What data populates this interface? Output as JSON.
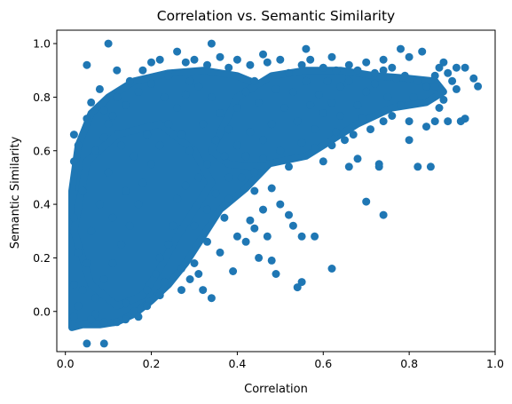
{
  "chart_data": {
    "type": "scatter",
    "title": "Correlation vs. Semantic Similarity",
    "xlabel": "Correlation",
    "ylabel": "Semantic Similarity",
    "xlim": [
      -0.02,
      1.0
    ],
    "ylim": [
      -0.15,
      1.05
    ],
    "x_ticks": [
      0.0,
      0.2,
      0.4,
      0.6,
      0.8,
      1.0
    ],
    "x_tick_labels": [
      "0.0",
      "0.2",
      "0.4",
      "0.6",
      "0.8",
      "1.0"
    ],
    "y_ticks": [
      0.0,
      0.2,
      0.4,
      0.6,
      0.8,
      1.0
    ],
    "y_tick_labels": [
      "0.0",
      "0.2",
      "0.4",
      "0.6",
      "0.8",
      "1.0"
    ],
    "grid": false,
    "color": "#1f77b4",
    "points": [
      [
        0.1,
        1.0
      ],
      [
        0.34,
        1.0
      ],
      [
        0.05,
        0.92
      ],
      [
        0.78,
        0.98
      ],
      [
        0.56,
        0.98
      ],
      [
        0.83,
        0.97
      ],
      [
        0.26,
        0.97
      ],
      [
        0.46,
        0.96
      ],
      [
        0.8,
        0.95
      ],
      [
        0.62,
        0.95
      ],
      [
        0.7,
        0.93
      ],
      [
        0.74,
        0.94
      ],
      [
        0.87,
        0.91
      ],
      [
        0.93,
        0.91
      ],
      [
        0.76,
        0.91
      ],
      [
        0.89,
        0.89
      ],
      [
        0.95,
        0.87
      ],
      [
        0.96,
        0.84
      ],
      [
        0.91,
        0.83
      ],
      [
        0.88,
        0.79
      ],
      [
        0.93,
        0.72
      ],
      [
        0.92,
        0.71
      ],
      [
        0.89,
        0.71
      ],
      [
        0.86,
        0.71
      ],
      [
        0.8,
        0.71
      ],
      [
        0.87,
        0.76
      ],
      [
        0.84,
        0.69
      ],
      [
        0.8,
        0.64
      ],
      [
        0.74,
        0.71
      ],
      [
        0.71,
        0.68
      ],
      [
        0.67,
        0.66
      ],
      [
        0.63,
        0.67
      ],
      [
        0.58,
        0.61
      ],
      [
        0.6,
        0.56
      ],
      [
        0.66,
        0.54
      ],
      [
        0.68,
        0.57
      ],
      [
        0.73,
        0.55
      ],
      [
        0.73,
        0.54
      ],
      [
        0.82,
        0.54
      ],
      [
        0.85,
        0.54
      ],
      [
        0.7,
        0.41
      ],
      [
        0.74,
        0.36
      ],
      [
        0.52,
        0.36
      ],
      [
        0.58,
        0.28
      ],
      [
        0.55,
        0.28
      ],
      [
        0.53,
        0.32
      ],
      [
        0.5,
        0.4
      ],
      [
        0.62,
        0.16
      ],
      [
        0.55,
        0.11
      ],
      [
        0.54,
        0.09
      ],
      [
        0.49,
        0.14
      ],
      [
        0.47,
        0.28
      ],
      [
        0.45,
        0.2
      ],
      [
        0.42,
        0.26
      ],
      [
        0.39,
        0.15
      ],
      [
        0.44,
        0.31
      ],
      [
        0.48,
        0.19
      ],
      [
        0.34,
        0.05
      ],
      [
        0.32,
        0.08
      ],
      [
        0.44,
        0.45
      ],
      [
        0.41,
        0.5
      ],
      [
        0.38,
        0.42
      ],
      [
        0.37,
        0.35
      ],
      [
        0.33,
        0.38
      ],
      [
        0.3,
        0.32
      ],
      [
        0.3,
        0.18
      ],
      [
        0.29,
        0.12
      ],
      [
        0.27,
        0.08
      ],
      [
        0.23,
        0.11
      ],
      [
        0.22,
        0.06
      ],
      [
        0.19,
        0.02
      ],
      [
        0.16,
        0.0
      ],
      [
        0.14,
        0.03
      ],
      [
        0.17,
        -0.02
      ],
      [
        0.14,
        -0.03
      ],
      [
        0.12,
        -0.04
      ],
      [
        0.09,
        -0.04
      ],
      [
        0.07,
        -0.01
      ],
      [
        0.06,
        -0.03
      ],
      [
        0.02,
        -0.02
      ],
      [
        0.05,
        -0.12
      ],
      [
        0.09,
        -0.12
      ],
      [
        0.03,
        0.02
      ],
      [
        0.02,
        0.1
      ],
      [
        0.03,
        0.22
      ],
      [
        0.02,
        0.35
      ],
      [
        0.04,
        0.45
      ],
      [
        0.02,
        0.56
      ],
      [
        0.03,
        0.62
      ],
      [
        0.02,
        0.66
      ],
      [
        0.05,
        0.72
      ],
      [
        0.06,
        0.78
      ],
      [
        0.08,
        0.83
      ],
      [
        0.09,
        0.75
      ],
      [
        0.1,
        0.7
      ],
      [
        0.12,
        0.8
      ],
      [
        0.12,
        0.9
      ],
      [
        0.15,
        0.86
      ],
      [
        0.18,
        0.9
      ],
      [
        0.2,
        0.93
      ],
      [
        0.22,
        0.94
      ],
      [
        0.24,
        0.88
      ],
      [
        0.28,
        0.93
      ],
      [
        0.29,
        0.86
      ],
      [
        0.3,
        0.94
      ],
      [
        0.33,
        0.92
      ],
      [
        0.36,
        0.95
      ],
      [
        0.38,
        0.91
      ],
      [
        0.4,
        0.94
      ],
      [
        0.43,
        0.92
      ],
      [
        0.44,
        0.86
      ],
      [
        0.47,
        0.93
      ],
      [
        0.5,
        0.94
      ],
      [
        0.52,
        0.89
      ],
      [
        0.55,
        0.92
      ],
      [
        0.57,
        0.94
      ],
      [
        0.6,
        0.91
      ],
      [
        0.61,
        0.86
      ],
      [
        0.63,
        0.9
      ],
      [
        0.66,
        0.92
      ],
      [
        0.68,
        0.9
      ],
      [
        0.72,
        0.89
      ],
      [
        0.77,
        0.87
      ],
      [
        0.79,
        0.88
      ],
      [
        0.82,
        0.86
      ],
      [
        0.84,
        0.84
      ],
      [
        0.86,
        0.84
      ],
      [
        0.9,
        0.86
      ],
      [
        0.64,
        0.84
      ],
      [
        0.7,
        0.82
      ],
      [
        0.75,
        0.8
      ],
      [
        0.78,
        0.77
      ],
      [
        0.81,
        0.8
      ],
      [
        0.76,
        0.73
      ],
      [
        0.68,
        0.77
      ],
      [
        0.64,
        0.73
      ],
      [
        0.6,
        0.74
      ],
      [
        0.57,
        0.77
      ],
      [
        0.54,
        0.71
      ],
      [
        0.51,
        0.76
      ],
      [
        0.48,
        0.7
      ],
      [
        0.46,
        0.64
      ],
      [
        0.43,
        0.67
      ],
      [
        0.4,
        0.62
      ],
      [
        0.37,
        0.58
      ],
      [
        0.35,
        0.64
      ],
      [
        0.33,
        0.55
      ],
      [
        0.31,
        0.5
      ],
      [
        0.28,
        0.47
      ],
      [
        0.26,
        0.42
      ],
      [
        0.25,
        0.32
      ],
      [
        0.24,
        0.25
      ],
      [
        0.22,
        0.2
      ],
      [
        0.21,
        0.14
      ],
      [
        0.19,
        0.08
      ],
      [
        0.07,
        0.05
      ],
      [
        0.09,
        0.12
      ],
      [
        0.11,
        0.18
      ],
      [
        0.13,
        0.25
      ],
      [
        0.15,
        0.32
      ],
      [
        0.17,
        0.4
      ],
      [
        0.18,
        0.48
      ],
      [
        0.2,
        0.55
      ],
      [
        0.22,
        0.62
      ],
      [
        0.24,
        0.7
      ],
      [
        0.26,
        0.76
      ],
      [
        0.28,
        0.81
      ],
      [
        0.31,
        0.84
      ],
      [
        0.34,
        0.8
      ],
      [
        0.36,
        0.74
      ],
      [
        0.38,
        0.68
      ],
      [
        0.4,
        0.76
      ],
      [
        0.42,
        0.82
      ],
      [
        0.45,
        0.78
      ],
      [
        0.49,
        0.83
      ],
      [
        0.53,
        0.82
      ],
      [
        0.56,
        0.86
      ],
      [
        0.59,
        0.81
      ],
      [
        0.62,
        0.78
      ],
      [
        0.66,
        0.86
      ],
      [
        0.72,
        0.85
      ],
      [
        0.74,
        0.9
      ],
      [
        0.86,
        0.88
      ],
      [
        0.88,
        0.93
      ],
      [
        0.91,
        0.91
      ],
      [
        0.42,
        0.58
      ],
      [
        0.44,
        0.52
      ],
      [
        0.46,
        0.57
      ],
      [
        0.5,
        0.6
      ],
      [
        0.52,
        0.54
      ],
      [
        0.55,
        0.63
      ],
      [
        0.58,
        0.68
      ],
      [
        0.62,
        0.62
      ],
      [
        0.65,
        0.64
      ],
      [
        0.69,
        0.72
      ],
      [
        0.48,
        0.46
      ],
      [
        0.46,
        0.38
      ],
      [
        0.43,
        0.34
      ],
      [
        0.4,
        0.28
      ],
      [
        0.36,
        0.22
      ],
      [
        0.33,
        0.26
      ],
      [
        0.31,
        0.14
      ],
      [
        0.27,
        0.16
      ],
      [
        0.35,
        0.44
      ],
      [
        0.38,
        0.5
      ],
      [
        0.11,
        0.35
      ],
      [
        0.14,
        0.45
      ],
      [
        0.16,
        0.58
      ],
      [
        0.19,
        0.66
      ],
      [
        0.13,
        0.62
      ],
      [
        0.1,
        0.52
      ],
      [
        0.08,
        0.4
      ],
      [
        0.06,
        0.3
      ],
      [
        0.05,
        0.18
      ],
      [
        0.04,
        0.08
      ],
      [
        0.07,
        0.6
      ],
      [
        0.09,
        0.65
      ],
      [
        0.11,
        0.73
      ],
      [
        0.14,
        0.77
      ],
      [
        0.17,
        0.82
      ],
      [
        0.2,
        0.85
      ],
      [
        0.23,
        0.8
      ],
      [
        0.27,
        0.66
      ],
      [
        0.29,
        0.6
      ],
      [
        0.32,
        0.7
      ]
    ],
    "fill_regions": [
      [
        [
          0.015,
          -0.06
        ],
        [
          0.015,
          0.45
        ],
        [
          0.03,
          0.62
        ],
        [
          0.06,
          0.74
        ],
        [
          0.1,
          0.8
        ],
        [
          0.16,
          0.86
        ],
        [
          0.24,
          0.89
        ],
        [
          0.32,
          0.9
        ],
        [
          0.4,
          0.88
        ],
        [
          0.46,
          0.84
        ],
        [
          0.5,
          0.78
        ],
        [
          0.52,
          0.68
        ],
        [
          0.48,
          0.56
        ],
        [
          0.42,
          0.46
        ],
        [
          0.36,
          0.38
        ],
        [
          0.32,
          0.28
        ],
        [
          0.28,
          0.18
        ],
        [
          0.24,
          0.1
        ],
        [
          0.2,
          0.04
        ],
        [
          0.16,
          -0.01
        ],
        [
          0.12,
          -0.04
        ],
        [
          0.08,
          -0.05
        ],
        [
          0.04,
          -0.05
        ]
      ],
      [
        [
          0.34,
          0.6
        ],
        [
          0.4,
          0.8
        ],
        [
          0.48,
          0.88
        ],
        [
          0.56,
          0.9
        ],
        [
          0.64,
          0.9
        ],
        [
          0.72,
          0.88
        ],
        [
          0.8,
          0.87
        ],
        [
          0.86,
          0.86
        ],
        [
          0.88,
          0.82
        ],
        [
          0.84,
          0.78
        ],
        [
          0.76,
          0.76
        ],
        [
          0.68,
          0.7
        ],
        [
          0.62,
          0.64
        ],
        [
          0.56,
          0.58
        ],
        [
          0.5,
          0.56
        ],
        [
          0.44,
          0.54
        ],
        [
          0.38,
          0.55
        ]
      ],
      [
        [
          0.02,
          0.3
        ],
        [
          0.06,
          0.1
        ],
        [
          0.12,
          0.02
        ],
        [
          0.18,
          0.06
        ],
        [
          0.22,
          0.16
        ],
        [
          0.26,
          0.28
        ],
        [
          0.3,
          0.38
        ],
        [
          0.34,
          0.48
        ],
        [
          0.3,
          0.6
        ],
        [
          0.22,
          0.7
        ],
        [
          0.12,
          0.66
        ],
        [
          0.05,
          0.56
        ]
      ]
    ]
  }
}
